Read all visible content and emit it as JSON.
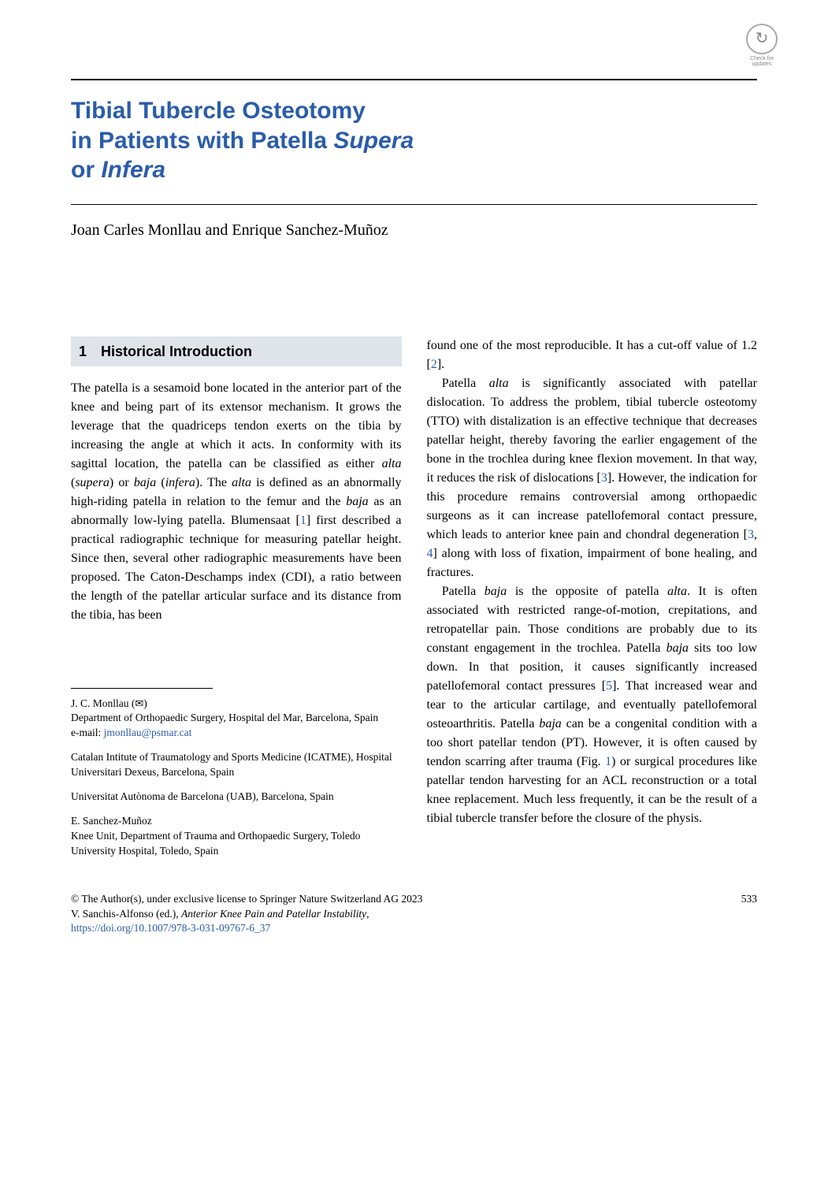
{
  "check_updates": {
    "label": "Check for updates"
  },
  "title": {
    "line1": "Tibial Tubercle Osteotomy",
    "line2_pre": "in Patients with Patella ",
    "line2_italic": "Supera",
    "line3_pre": "or ",
    "line3_italic": "Infera"
  },
  "authors": "Joan Carles Monllau and Enrique Sanchez-Muñoz",
  "section": {
    "number": "1",
    "title": "Historical Introduction"
  },
  "left_col": {
    "p1_a": "The patella is a sesamoid bone located in the anterior part of the knee and being part of its extensor mechanism. It grows the leverage that the quadriceps tendon exerts on the tibia by increasing the angle at which it acts. In conformity with its sagittal location, the patella can be classified as either ",
    "p1_i1": "alta",
    "p1_b": " (",
    "p1_i2": "supera",
    "p1_c": ") or ",
    "p1_i3": "baja",
    "p1_d": " (",
    "p1_i4": "infera",
    "p1_e": "). The ",
    "p1_i5": "alta",
    "p1_f": " is defined as an abnormally high-riding patella in relation to the femur and the ",
    "p1_i6": "baja",
    "p1_g": " as an abnormally low-lying patella. Blumensaat [",
    "p1_ref1": "1",
    "p1_h": "] first described a practical radiographic technique for measuring patellar height. Since then, several other radiographic measurements have been proposed. The Caton-Deschamps index (CDI), a ratio between the length of the patellar articular surface and its distance from the tibia, has been"
  },
  "right_col": {
    "p1_a": "found one of the most reproducible. It has a cut-off value of 1.2 [",
    "p1_ref": "2",
    "p1_b": "].",
    "p2_a": "Patella ",
    "p2_i1": "alta",
    "p2_b": " is significantly associated with patellar dislocation. To address the problem, tibial tubercle osteotomy (TTO) with distalization is an effective technique that decreases patellar height, thereby favoring the earlier engagement of the bone in the trochlea during knee flexion movement. In that way, it reduces the risk of dislocations [",
    "p2_ref1": "3",
    "p2_c": "]. However, the indication for this procedure remains controversial among orthopaedic surgeons as it can increase patellofemoral contact pressure, which leads to anterior knee pain and chondral degeneration [",
    "p2_ref2": "3",
    "p2_d": ", ",
    "p2_ref3": "4",
    "p2_e": "] along with loss of fixation, impairment of bone healing, and fractures.",
    "p3_a": "Patella ",
    "p3_i1": "baja",
    "p3_b": " is the opposite of patella ",
    "p3_i2": "alta",
    "p3_c": ". It is often associated with restricted range-of-motion, crepitations, and retropatellar pain. Those conditions are probably due to its constant engagement in the trochlea. Patella ",
    "p3_i3": "baja",
    "p3_d": " sits too low down. In that position, it causes significantly increased patellofemoral contact pressures [",
    "p3_ref1": "5",
    "p3_e": "]. That increased wear and tear to the articular cartilage, and eventually patellofemoral osteoarthritis. Patella ",
    "p3_i4": "baja",
    "p3_f": " can be a congenital condition with a too short patellar tendon (PT). However, it is often caused by tendon scarring after trauma (Fig. ",
    "p3_ref2": "1",
    "p3_g": ") or surgical procedures like patellar tendon harvesting for an ACL reconstruction or a total knee replacement. Much less frequently, it can be the result of a tibial tubercle transfer before the closure of the physis."
  },
  "affiliations": {
    "a1_name": "J. C. Monllau (",
    "a1_icon": "✉",
    "a1_close": ")",
    "a1_dept": "Department of Orthopaedic Surgery, Hospital del Mar, Barcelona, Spain",
    "a1_email_label": "e-mail: ",
    "a1_email": "jmonllau@psmar.cat",
    "a2": "Catalan Intitute of Traumatology and Sports Medicine (ICATME), Hospital Universitari Dexeus, Barcelona, Spain",
    "a3": "Universitat Autònoma de Barcelona (UAB), Barcelona, Spain",
    "a4_name": "E. Sanchez-Muñoz",
    "a4_dept": "Knee Unit, Department of Trauma and Orthopaedic Surgery, Toledo University Hospital, Toledo, Spain"
  },
  "footer": {
    "copyright": "© The Author(s), under exclusive license to Springer Nature Switzerland AG 2023",
    "editor_a": "V. Sanchis-Alfonso (ed.), ",
    "editor_i": "Anterior Knee Pain and Patellar Instability",
    "editor_b": ",",
    "doi": "https://doi.org/10.1007/978-3-031-09767-6_37",
    "page": "533"
  }
}
